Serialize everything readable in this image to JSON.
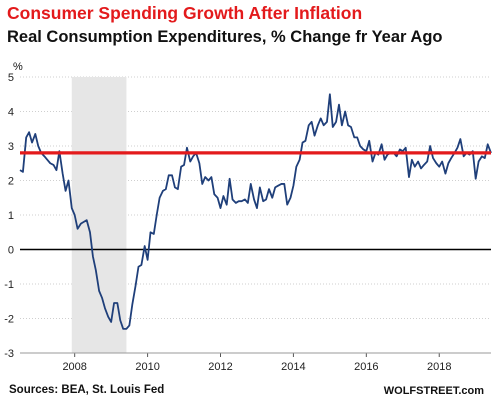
{
  "header": {
    "title": "Consumer Spending Growth After Inflation",
    "subtitle": "Real Consumption Expenditures, % Change fr Year Ago"
  },
  "footer": {
    "source": "Sources: BEA, St. Louis Fed",
    "brand": "WOLFSTREET.com"
  },
  "colors": {
    "title": "#e31a1c",
    "series": "#1f3f7a",
    "reference_line": "#e31a1c",
    "zero_line": "#000000",
    "recession_shade": "#e6e6e6"
  },
  "chart_data": {
    "type": "line",
    "ylabel": "%",
    "xlim": [
      2006.5,
      2019.42
    ],
    "ylim": [
      -3,
      5
    ],
    "y_ticks": [
      "5",
      "4",
      "3",
      "2",
      "1",
      "0",
      "-1",
      "-2",
      "-3"
    ],
    "y_tick_values": [
      5,
      4,
      3,
      2,
      1,
      0,
      -1,
      -2,
      -3
    ],
    "x_ticks": [
      "2008",
      "2010",
      "2012",
      "2014",
      "2016",
      "2018"
    ],
    "x_tick_values": [
      2008,
      2010,
      2012,
      2014,
      2016,
      2018
    ],
    "grid": "horizontal",
    "recession_band": [
      2007.92,
      2009.42
    ],
    "reference_line": 2.8,
    "zero_line": 0,
    "series": [
      {
        "values": [
          [
            2006.5,
            2.3
          ],
          [
            2006.58,
            2.25
          ],
          [
            2006.67,
            3.25
          ],
          [
            2006.75,
            3.4
          ],
          [
            2006.83,
            3.1
          ],
          [
            2006.92,
            3.35
          ],
          [
            2007.0,
            3.0
          ],
          [
            2007.08,
            2.8
          ],
          [
            2007.17,
            2.7
          ],
          [
            2007.25,
            2.6
          ],
          [
            2007.33,
            2.5
          ],
          [
            2007.42,
            2.45
          ],
          [
            2007.5,
            2.3
          ],
          [
            2007.58,
            2.85
          ],
          [
            2007.67,
            2.2
          ],
          [
            2007.75,
            1.7
          ],
          [
            2007.83,
            2.0
          ],
          [
            2007.92,
            1.2
          ],
          [
            2008.0,
            1.0
          ],
          [
            2008.08,
            0.6
          ],
          [
            2008.17,
            0.75
          ],
          [
            2008.25,
            0.8
          ],
          [
            2008.33,
            0.85
          ],
          [
            2008.42,
            0.5
          ],
          [
            2008.5,
            -0.2
          ],
          [
            2008.58,
            -0.6
          ],
          [
            2008.67,
            -1.2
          ],
          [
            2008.75,
            -1.4
          ],
          [
            2008.83,
            -1.7
          ],
          [
            2008.92,
            -1.95
          ],
          [
            2009.0,
            -2.1
          ],
          [
            2009.08,
            -1.55
          ],
          [
            2009.17,
            -1.55
          ],
          [
            2009.25,
            -2.05
          ],
          [
            2009.33,
            -2.3
          ],
          [
            2009.42,
            -2.3
          ],
          [
            2009.5,
            -2.2
          ],
          [
            2009.58,
            -1.6
          ],
          [
            2009.67,
            -1.05
          ],
          [
            2009.75,
            -0.5
          ],
          [
            2009.83,
            -0.45
          ],
          [
            2009.92,
            0.1
          ],
          [
            2010.0,
            -0.3
          ],
          [
            2010.08,
            0.5
          ],
          [
            2010.17,
            0.45
          ],
          [
            2010.25,
            1.0
          ],
          [
            2010.33,
            1.5
          ],
          [
            2010.42,
            1.7
          ],
          [
            2010.5,
            1.75
          ],
          [
            2010.58,
            2.15
          ],
          [
            2010.67,
            2.15
          ],
          [
            2010.75,
            1.8
          ],
          [
            2010.83,
            1.75
          ],
          [
            2010.92,
            2.4
          ],
          [
            2011.0,
            2.45
          ],
          [
            2011.08,
            2.95
          ],
          [
            2011.17,
            2.55
          ],
          [
            2011.25,
            2.7
          ],
          [
            2011.33,
            2.8
          ],
          [
            2011.42,
            2.5
          ],
          [
            2011.5,
            1.9
          ],
          [
            2011.58,
            2.1
          ],
          [
            2011.67,
            2.0
          ],
          [
            2011.75,
            2.1
          ],
          [
            2011.83,
            1.6
          ],
          [
            2011.92,
            1.5
          ],
          [
            2012.0,
            1.2
          ],
          [
            2012.08,
            1.55
          ],
          [
            2012.17,
            1.3
          ],
          [
            2012.25,
            2.05
          ],
          [
            2012.33,
            1.45
          ],
          [
            2012.42,
            1.35
          ],
          [
            2012.5,
            1.4
          ],
          [
            2012.58,
            1.4
          ],
          [
            2012.67,
            1.45
          ],
          [
            2012.75,
            1.35
          ],
          [
            2012.83,
            1.9
          ],
          [
            2012.92,
            1.45
          ],
          [
            2013.0,
            1.2
          ],
          [
            2013.08,
            1.8
          ],
          [
            2013.17,
            1.4
          ],
          [
            2013.25,
            1.45
          ],
          [
            2013.33,
            1.75
          ],
          [
            2013.42,
            1.5
          ],
          [
            2013.5,
            1.8
          ],
          [
            2013.58,
            1.85
          ],
          [
            2013.67,
            1.9
          ],
          [
            2013.75,
            1.9
          ],
          [
            2013.83,
            1.3
          ],
          [
            2013.92,
            1.5
          ],
          [
            2014.0,
            1.85
          ],
          [
            2014.08,
            2.4
          ],
          [
            2014.17,
            2.6
          ],
          [
            2014.25,
            3.1
          ],
          [
            2014.33,
            3.15
          ],
          [
            2014.42,
            3.6
          ],
          [
            2014.5,
            3.7
          ],
          [
            2014.58,
            3.3
          ],
          [
            2014.67,
            3.6
          ],
          [
            2014.75,
            3.8
          ],
          [
            2014.83,
            3.6
          ],
          [
            2014.92,
            3.7
          ],
          [
            2015.0,
            4.5
          ],
          [
            2015.08,
            3.55
          ],
          [
            2015.17,
            3.7
          ],
          [
            2015.25,
            4.2
          ],
          [
            2015.33,
            3.6
          ],
          [
            2015.42,
            4.0
          ],
          [
            2015.5,
            3.6
          ],
          [
            2015.58,
            3.55
          ],
          [
            2015.67,
            3.25
          ],
          [
            2015.75,
            3.25
          ],
          [
            2015.83,
            3.0
          ],
          [
            2015.92,
            2.9
          ],
          [
            2016.0,
            2.85
          ],
          [
            2016.08,
            3.15
          ],
          [
            2016.17,
            2.55
          ],
          [
            2016.25,
            2.8
          ],
          [
            2016.33,
            2.75
          ],
          [
            2016.42,
            3.05
          ],
          [
            2016.5,
            2.6
          ],
          [
            2016.58,
            2.75
          ],
          [
            2016.67,
            2.8
          ],
          [
            2016.75,
            2.8
          ],
          [
            2016.83,
            2.7
          ],
          [
            2016.92,
            2.9
          ],
          [
            2017.0,
            2.85
          ],
          [
            2017.08,
            2.95
          ],
          [
            2017.17,
            2.1
          ],
          [
            2017.25,
            2.6
          ],
          [
            2017.33,
            2.4
          ],
          [
            2017.42,
            2.55
          ],
          [
            2017.5,
            2.35
          ],
          [
            2017.58,
            2.45
          ],
          [
            2017.67,
            2.55
          ],
          [
            2017.75,
            3.0
          ],
          [
            2017.83,
            2.65
          ],
          [
            2017.92,
            2.5
          ],
          [
            2018.0,
            2.4
          ],
          [
            2018.08,
            2.55
          ],
          [
            2018.17,
            2.2
          ],
          [
            2018.25,
            2.5
          ],
          [
            2018.33,
            2.65
          ],
          [
            2018.42,
            2.8
          ],
          [
            2018.5,
            2.95
          ],
          [
            2018.58,
            3.2
          ],
          [
            2018.67,
            2.7
          ],
          [
            2018.75,
            2.8
          ],
          [
            2018.83,
            2.75
          ],
          [
            2018.92,
            2.85
          ],
          [
            2019.0,
            2.05
          ],
          [
            2019.08,
            2.55
          ],
          [
            2019.17,
            2.7
          ],
          [
            2019.25,
            2.65
          ],
          [
            2019.33,
            3.05
          ],
          [
            2019.42,
            2.8
          ]
        ]
      }
    ]
  }
}
